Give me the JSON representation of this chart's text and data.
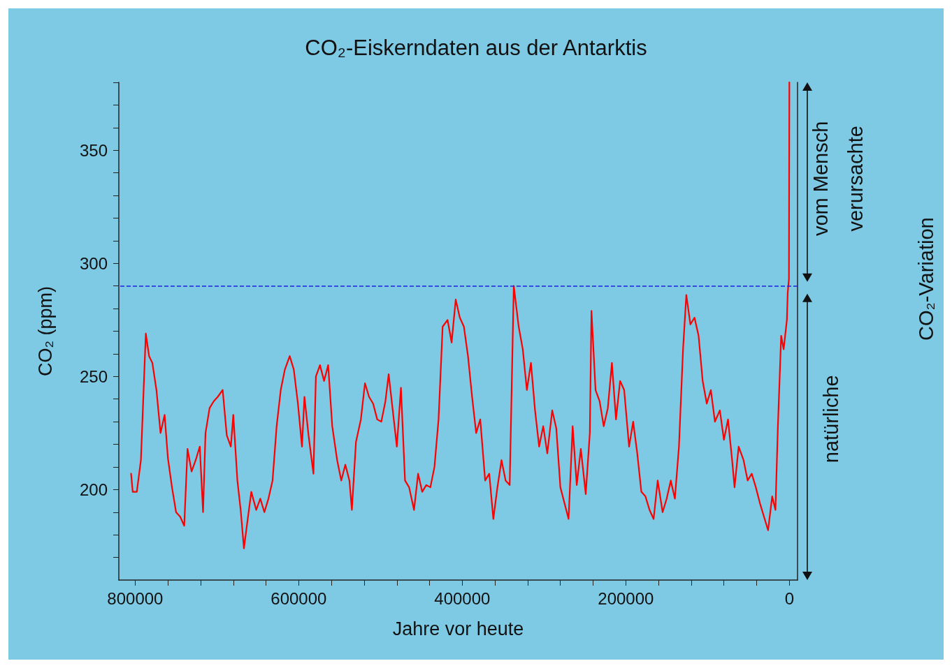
{
  "chart_data": {
    "type": "line",
    "title": "CO₂-Eiskerndaten aus der Antarktis",
    "xlabel": "Jahre vor heute",
    "ylabel": "CO₂ (ppm)",
    "annotations": [
      "vom Mensch\nverursachte",
      "natürliche",
      "CO₂-Variation"
    ],
    "xlim": [
      820000,
      -10000
    ],
    "xticks": [
      800000,
      {
        "value": 760000,
        "label": null
      },
      {
        "value": 720000,
        "label": null
      },
      {
        "value": 680000,
        "label": null
      },
      {
        "value": 640000,
        "label": null
      },
      600000,
      {
        "value": 560000,
        "label": null
      },
      {
        "value": 520000,
        "label": null
      },
      {
        "value": 480000,
        "label": null
      },
      {
        "value": 440000,
        "label": null
      },
      400000,
      {
        "value": 360000,
        "label": null
      },
      {
        "value": 320000,
        "label": null
      },
      {
        "value": 280000,
        "label": null
      },
      {
        "value": 240000,
        "label": null
      },
      200000,
      {
        "value": 160000,
        "label": null
      },
      {
        "value": 120000,
        "label": null
      },
      {
        "value": 80000,
        "label": null
      },
      {
        "value": 40000,
        "label": null
      },
      0
    ],
    "ylim": [
      160,
      380
    ],
    "yticks": [
      {
        "value": 170,
        "label": null
      },
      {
        "value": 180,
        "label": null
      },
      {
        "value": 190,
        "label": null
      },
      200,
      {
        "value": 210,
        "label": null
      },
      {
        "value": 220,
        "label": null
      },
      {
        "value": 230,
        "label": null
      },
      {
        "value": 240,
        "label": null
      },
      250,
      {
        "value": 260,
        "label": null
      },
      {
        "value": 270,
        "label": null
      },
      {
        "value": 280,
        "label": null
      },
      {
        "value": 290,
        "label": null
      },
      300,
      {
        "value": 310,
        "label": null
      },
      {
        "value": 320,
        "label": null
      },
      {
        "value": 330,
        "label": null
      },
      {
        "value": 340,
        "label": null
      },
      350,
      {
        "value": 360,
        "label": null
      },
      {
        "value": 370,
        "label": null
      },
      {
        "value": 380,
        "label": null
      }
    ],
    "grid": false,
    "marker": "none",
    "line_style": "solid",
    "ref_lines": [
      {
        "axis": "y",
        "value": 290,
        "label": null,
        "color": "#2020e0",
        "line_style": "dashed"
      }
    ],
    "series": [
      {
        "color": "#ff0000",
        "x": [
          805000,
          803000,
          798000,
          793000,
          787000,
          783000,
          779000,
          774000,
          769000,
          764000,
          760000,
          755000,
          750000,
          745000,
          740000,
          736000,
          731000,
          726000,
          721000,
          717000,
          714000,
          709000,
          704000,
          699000,
          693000,
          688000,
          683000,
          680000,
          675000,
          671000,
          667000,
          662000,
          658000,
          652000,
          647000,
          642000,
          637000,
          632000,
          627000,
          622000,
          617000,
          611000,
          606000,
          601000,
          596000,
          593000,
          588000,
          582000,
          579000,
          574000,
          569000,
          564000,
          559000,
          553000,
          548000,
          543000,
          538000,
          535000,
          530000,
          524000,
          519000,
          514000,
          509000,
          504000,
          499000,
          494000,
          490000,
          485000,
          480000,
          475000,
          470000,
          465000,
          459000,
          454000,
          449000,
          444000,
          439000,
          434000,
          429000,
          424000,
          418000,
          413000,
          408000,
          403000,
          398000,
          393000,
          388000,
          383000,
          378000,
          372000,
          367000,
          362000,
          357000,
          352000,
          347000,
          342000,
          337000,
          331000,
          326000,
          321000,
          316000,
          311000,
          306000,
          301000,
          296000,
          290000,
          285000,
          280000,
          275000,
          270000,
          265000,
          260000,
          255000,
          249000,
          244000,
          242000,
          237000,
          232000,
          227000,
          222000,
          217000,
          212000,
          207000,
          202000,
          196000,
          191000,
          186000,
          181000,
          176000,
          171000,
          166000,
          161000,
          155000,
          150000,
          145000,
          140000,
          135000,
          130000,
          126000,
          121000,
          116000,
          111000,
          106000,
          101000,
          96000,
          91000,
          85000,
          80000,
          75000,
          70000,
          67000,
          62000,
          56000,
          51000,
          46000,
          41000,
          36000,
          31000,
          26000,
          21000,
          17000,
          14000,
          10000,
          7000,
          3000,
          2000,
          500,
          0
        ],
        "values": [
          207,
          199,
          199,
          213,
          269,
          259,
          256,
          244,
          225,
          233,
          214,
          201,
          190,
          188,
          184,
          218,
          208,
          213,
          219,
          190,
          225,
          236,
          239,
          241,
          244,
          224,
          219,
          233,
          204,
          191,
          174,
          188,
          199,
          191,
          196,
          190,
          196,
          204,
          228,
          244,
          253,
          259,
          253,
          238,
          219,
          241,
          224,
          207,
          250,
          255,
          248,
          255,
          228,
          213,
          204,
          211,
          204,
          191,
          221,
          231,
          247,
          241,
          238,
          231,
          230,
          239,
          251,
          235,
          219,
          245,
          204,
          201,
          191,
          207,
          199,
          202,
          201,
          210,
          231,
          272,
          275,
          265,
          284,
          276,
          272,
          259,
          241,
          225,
          231,
          204,
          207,
          187,
          201,
          213,
          204,
          202,
          290,
          272,
          262,
          244,
          256,
          235,
          219,
          228,
          216,
          235,
          227,
          201,
          194,
          187,
          228,
          202,
          218,
          198,
          225,
          279,
          244,
          239,
          228,
          236,
          256,
          231,
          248,
          244,
          219,
          230,
          216,
          199,
          197,
          191,
          187,
          204,
          190,
          196,
          204,
          196,
          219,
          262,
          286,
          273,
          276,
          268,
          248,
          238,
          244,
          230,
          235,
          222,
          231,
          213,
          201,
          219,
          213,
          204,
          207,
          201,
          194,
          188,
          182,
          197,
          191,
          228,
          268,
          262,
          275,
          287,
          293,
          380
        ]
      }
    ]
  }
}
